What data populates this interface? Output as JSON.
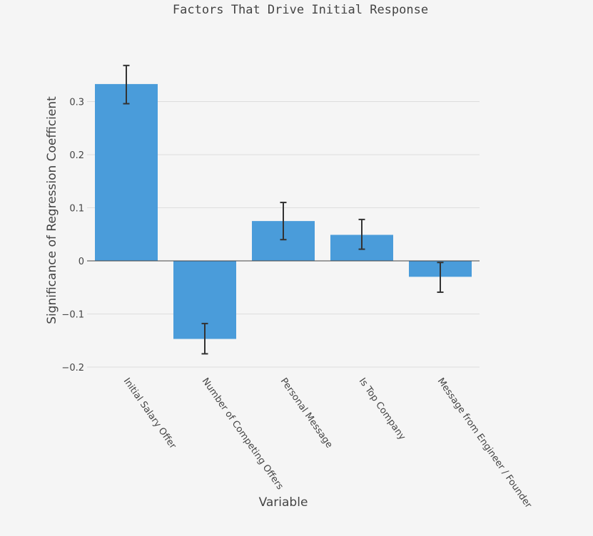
{
  "chart_data": {
    "type": "bar",
    "title": "Factors That Drive Initial Response",
    "xlabel": "Variable",
    "ylabel": "Significance of Regression Coefficient",
    "categories": [
      "Initial Salary Offer",
      "Number of Competing Offers",
      "Personal Message",
      "Is Top Company",
      "Message from Engineer / Founder"
    ],
    "values": [
      0.333,
      -0.147,
      0.075,
      0.049,
      -0.03
    ],
    "error_low": [
      0.296,
      -0.175,
      0.04,
      0.022,
      -0.059
    ],
    "error_high": [
      0.368,
      -0.118,
      0.11,
      0.078,
      -0.003
    ],
    "ylim": [
      -0.21,
      0.36
    ],
    "yticks": [
      -0.2,
      -0.1,
      0,
      0.1,
      0.2,
      0.3
    ],
    "ytick_labels": [
      "−0.2",
      "−0.1",
      "0",
      "0.1",
      "0.2",
      "0.3"
    ],
    "grid": true,
    "legend": "none",
    "colors": {
      "bar": "#4a9cda",
      "error_bar": "#333333",
      "grid": "#dddddd",
      "zero_line": "#444444",
      "text": "#444444",
      "background": "#f5f5f5"
    }
  }
}
